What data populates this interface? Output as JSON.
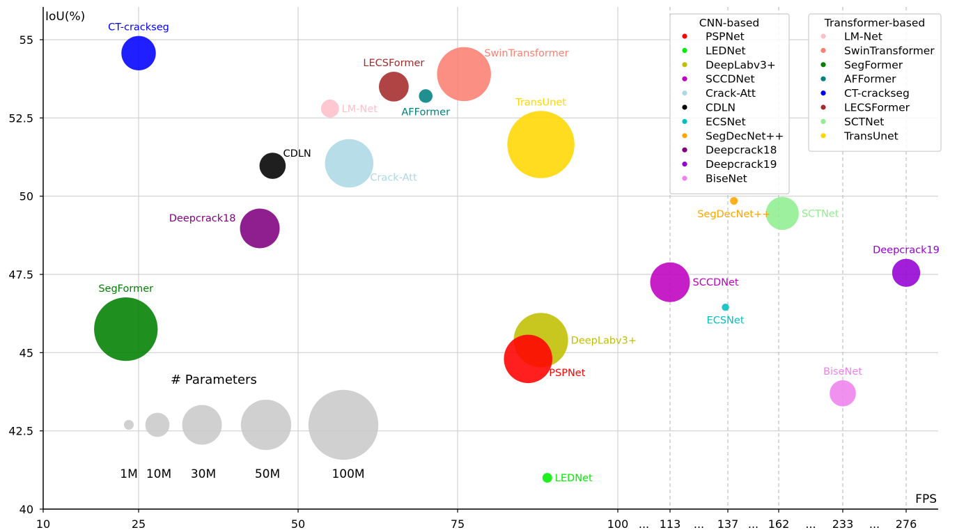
{
  "chart_data": {
    "type": "scatter",
    "subtype": "bubble",
    "xlabel": "FPS",
    "ylabel": "IoU(%)",
    "ylim": [
      40,
      56
    ],
    "x_ticks": [
      "10",
      "25",
      "50",
      "75",
      "100",
      "113",
      "137",
      "162",
      "233",
      "276"
    ],
    "x_ellipsis": "...",
    "y_ticks": [
      "40",
      "42.5",
      "45",
      "47.5",
      "50",
      "52.5",
      "55"
    ],
    "grid": true,
    "legends": [
      {
        "title": "CNN-based",
        "placement": "top-right",
        "entries": [
          "PSPNet",
          "LEDNet",
          "DeepLabv3+",
          "SCCDNet",
          "Crack-Att",
          "CDLN",
          "ECSNet",
          "SegDecNet++",
          "Deepcrack18",
          "Deepcrack19",
          "BiseNet"
        ]
      },
      {
        "title": "Transformer-based",
        "placement": "top-right",
        "entries": [
          "LM-Net",
          "SwinTransformer",
          "SegFormer",
          "AFFormer",
          "CT-crackseg",
          "LECSFormer",
          "SCTNet",
          "TransUnet"
        ]
      }
    ],
    "size_legend": {
      "title": "# Parameters",
      "labels": [
        "1M",
        "10M",
        "30M",
        "50M",
        "100M"
      ],
      "values": [
        1,
        10,
        30,
        50,
        100
      ]
    },
    "points": [
      {
        "name": "PSPNet",
        "group": "CNN-based",
        "fps": 86,
        "iou": 44.8,
        "params": 46,
        "color": "#ff0000",
        "label_pos": "below-right"
      },
      {
        "name": "LEDNet",
        "group": "CNN-based",
        "fps": 89,
        "iou": 41.0,
        "params": 1,
        "color": "#00ee00",
        "label_pos": "right"
      },
      {
        "name": "DeepLabv3+",
        "group": "CNN-based",
        "fps": 88,
        "iou": 45.4,
        "params": 59,
        "color": "#bfbf00",
        "label_pos": "right"
      },
      {
        "name": "SCCDNet",
        "group": "CNN-based",
        "fps": 113,
        "iou": 47.25,
        "params": 30,
        "color": "#bf00bf",
        "label_pos": "right"
      },
      {
        "name": "Crack-Att",
        "group": "CNN-based",
        "fps": 58,
        "iou": 51.05,
        "params": 46,
        "color": "#add8e6",
        "label_pos": "below-right"
      },
      {
        "name": "CDLN",
        "group": "CNN-based",
        "fps": 46,
        "iou": 50.97,
        "params": 12,
        "color": "#000000",
        "label_pos": "above-right"
      },
      {
        "name": "ECSNet",
        "group": "CNN-based",
        "fps": 136,
        "iou": 46.45,
        "params": 0.4,
        "color": "#00bfbf",
        "label_pos": "below"
      },
      {
        "name": "SegDecNet++",
        "group": "CNN-based",
        "fps": 140,
        "iou": 49.85,
        "params": 0.5,
        "color": "#ffa500",
        "label_pos": "below"
      },
      {
        "name": "Deepcrack18",
        "group": "CNN-based",
        "fps": 44,
        "iou": 48.97,
        "params": 30,
        "color": "#800080",
        "label_pos": "left"
      },
      {
        "name": "Deepcrack19",
        "group": "CNN-based",
        "fps": 276,
        "iou": 47.55,
        "params": 14,
        "color": "#9400d3",
        "label_pos": "above"
      },
      {
        "name": "BiseNet",
        "group": "CNN-based",
        "fps": 233,
        "iou": 43.7,
        "params": 12,
        "color": "#ee82ee",
        "label_pos": "above"
      },
      {
        "name": "LM-Net",
        "group": "Transformer-based",
        "fps": 55,
        "iou": 52.8,
        "params": 5,
        "color": "#ffc0cb",
        "label_pos": "right"
      },
      {
        "name": "SwinTransformer",
        "group": "Transformer-based",
        "fps": 76,
        "iou": 53.9,
        "params": 58,
        "color": "#fa8072",
        "label_pos": "above-right"
      },
      {
        "name": "SegFormer",
        "group": "Transformer-based",
        "fps": 23,
        "iou": 45.75,
        "params": 82,
        "color": "#008000",
        "label_pos": "above"
      },
      {
        "name": "AFFormer",
        "group": "Transformer-based",
        "fps": 70,
        "iou": 53.2,
        "params": 2.5,
        "color": "#008080",
        "label_pos": "below"
      },
      {
        "name": "CT-crackseg",
        "group": "Transformer-based",
        "fps": 25,
        "iou": 54.57,
        "params": 22,
        "color": "#0000ff",
        "label_pos": "above"
      },
      {
        "name": "LECSFormer",
        "group": "Transformer-based",
        "fps": 65,
        "iou": 53.5,
        "params": 16,
        "color": "#a52a2a",
        "label_pos": "above"
      },
      {
        "name": "SCTNet",
        "group": "Transformer-based",
        "fps": 166,
        "iou": 49.45,
        "params": 20,
        "color": "#90ee90",
        "label_pos": "right"
      },
      {
        "name": "TransUnet",
        "group": "Transformer-based",
        "fps": 88,
        "iou": 51.65,
        "params": 92,
        "color": "#ffd700",
        "label_pos": "above"
      }
    ]
  }
}
